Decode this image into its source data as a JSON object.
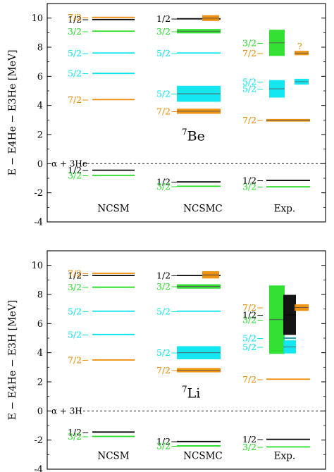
{
  "colors": {
    "j12": "#000000",
    "j32": "#22dd22",
    "j52": "#00e5ee",
    "j72": "#ee8a00"
  },
  "chart_data": [
    {
      "type": "level-scheme",
      "nucleus": "Be",
      "nucleus_mass": "7",
      "ylabel": "E − E4He − E3He [MeV]",
      "ylim": [
        -4,
        11
      ],
      "yticks": [
        "-4",
        "-2",
        "0",
        "2",
        "4",
        "6",
        "8",
        "10"
      ],
      "threshold_label": "α + 3He",
      "columns": [
        "NCSM",
        "NCSMC",
        "Exp."
      ],
      "levels": {
        "NCSM": [
          {
            "j": "1/2−",
            "e": -0.45,
            "color": "j12",
            "label": "1/2−"
          },
          {
            "j": "3/2−",
            "e": -0.8,
            "color": "j32",
            "label": "3/2−"
          },
          {
            "j": "7/2−",
            "e": 4.4,
            "color": "j72",
            "label": "7/2−"
          },
          {
            "j": "5/2−",
            "e": 6.2,
            "color": "j52",
            "label": "5/2−"
          },
          {
            "j": "5/2−",
            "e": 7.6,
            "color": "j52",
            "label": "5/2−"
          },
          {
            "j": "3/2−",
            "e": 9.1,
            "color": "j32",
            "label": "3/2−"
          },
          {
            "j": "1/2−",
            "e": 9.9,
            "color": "j12",
            "label": "1/2−"
          },
          {
            "j": "7/2−",
            "e": 10.05,
            "color": "j72",
            "label": "7/2−"
          }
        ],
        "NCSMC": [
          {
            "j": "1/2−",
            "e": -1.25,
            "color": "j12",
            "label": "1/2−"
          },
          {
            "j": "3/2−",
            "e": -1.55,
            "color": "j32",
            "label": "3/2−"
          },
          {
            "j": "7/2−",
            "e": 3.6,
            "width": 0.35,
            "color": "j72",
            "label": "7/2−"
          },
          {
            "j": "5/2−",
            "e": 4.8,
            "width": 1.1,
            "color": "j52",
            "label": "5/2−"
          },
          {
            "j": "5/2−",
            "e": 7.6,
            "color": "j52",
            "label": "5/2−"
          },
          {
            "j": "3/2−",
            "e": 9.1,
            "width": 0.3,
            "color": "j32",
            "label": "3/2−"
          },
          {
            "j": "1/2−",
            "e": 9.95,
            "color": "j12",
            "label": "1/2−"
          },
          {
            "j": "7/2−",
            "e": 10.0,
            "width": 0.4,
            "color": "j72",
            "label": "",
            "sub": "right"
          }
        ],
        "Exp.": [
          {
            "j": "1/2−",
            "e": -1.15,
            "color": "j12",
            "label": "1/2−"
          },
          {
            "j": "3/2−",
            "e": -1.59,
            "color": "j32",
            "label": "3/2−"
          },
          {
            "j": "7/2−",
            "e": 2.98,
            "width": 0.18,
            "color": "j72",
            "label": "7/2−"
          },
          {
            "j": "5/2−",
            "e": 5.14,
            "width": 1.2,
            "color": "j52",
            "label": "5/2−",
            "sub": "left"
          },
          {
            "j": "5/2−",
            "e": 5.63,
            "width": 0.4,
            "color": "j52",
            "label": "5/2−",
            "sub": "right"
          },
          {
            "j": "7/2−",
            "e": 7.6,
            "width": 0.3,
            "color": "j72",
            "label": "7/2−",
            "sub": "right"
          },
          {
            "j": "3/2−",
            "e": 8.3,
            "width": 1.8,
            "color": "j32",
            "label": "3/2−",
            "sub": "left"
          }
        ]
      },
      "annotations": [
        {
          "text": "?",
          "near": "Exp. 7/2− at 7.6 MeV"
        }
      ]
    },
    {
      "type": "level-scheme",
      "nucleus": "Li",
      "nucleus_mass": "7",
      "ylabel": "E − E4He − E3H [MeV]",
      "ylim": [
        -4,
        11
      ],
      "yticks": [
        "-4",
        "-2",
        "0",
        "2",
        "4",
        "6",
        "8",
        "10"
      ],
      "threshold_label": "α + 3H",
      "columns": [
        "NCSM",
        "NCSMC",
        "Exp."
      ],
      "levels": {
        "NCSM": [
          {
            "j": "1/2−",
            "e": -1.45,
            "color": "j12",
            "label": "1/2−"
          },
          {
            "j": "3/2−",
            "e": -1.75,
            "color": "j32",
            "label": "3/2−"
          },
          {
            "j": "7/2−",
            "e": 3.5,
            "color": "j72",
            "label": "7/2−"
          },
          {
            "j": "5/2−",
            "e": 5.25,
            "color": "j52",
            "label": "5/2−"
          },
          {
            "j": "5/2−",
            "e": 6.85,
            "color": "j52",
            "label": "5/2−"
          },
          {
            "j": "3/2−",
            "e": 8.5,
            "color": "j32",
            "label": "3/2−"
          },
          {
            "j": "1/2−",
            "e": 9.3,
            "color": "j12",
            "label": "1/2−"
          },
          {
            "j": "7/2−",
            "e": 9.45,
            "color": "j72",
            "label": "7/2−"
          }
        ],
        "NCSMC": [
          {
            "j": "1/2−",
            "e": -2.1,
            "color": "j12",
            "label": "1/2−"
          },
          {
            "j": "3/2−",
            "e": -2.4,
            "color": "j32",
            "label": "3/2−"
          },
          {
            "j": "7/2−",
            "e": 2.8,
            "width": 0.3,
            "color": "j72",
            "label": "7/2−"
          },
          {
            "j": "5/2−",
            "e": 4.0,
            "width": 0.9,
            "color": "j52",
            "label": "5/2−"
          },
          {
            "j": "5/2−",
            "e": 6.85,
            "color": "j52",
            "label": "5/2−"
          },
          {
            "j": "3/2−",
            "e": 8.55,
            "width": 0.3,
            "color": "j32",
            "label": "3/2−"
          },
          {
            "j": "1/2−",
            "e": 9.3,
            "color": "j12",
            "label": "1/2−"
          },
          {
            "j": "7/2−",
            "e": 9.35,
            "width": 0.5,
            "color": "j72",
            "label": "",
            "sub": "right"
          }
        ],
        "Exp.": [
          {
            "j": "1/2−",
            "e": -1.95,
            "color": "j12",
            "label": "1/2−"
          },
          {
            "j": "3/2−",
            "e": -2.47,
            "color": "j32",
            "label": "3/2−"
          },
          {
            "j": "7/2−",
            "e": 2.18,
            "color": "j72",
            "label": "7/2−"
          },
          {
            "j": "3/2−",
            "e": 6.27,
            "width": 4.7,
            "color": "j32",
            "label": "3/2−",
            "sub": "left"
          },
          {
            "j": "1/2−",
            "e": 6.6,
            "width": 2.75,
            "color": "j12",
            "label": "1/2−",
            "sub": "mid"
          },
          {
            "j": "5/2−",
            "e": 4.4,
            "width": 0.9,
            "color": "j52",
            "label": "5/2−",
            "sub": "mid"
          },
          {
            "j": "5/2−",
            "e": 5.0,
            "width": 0.12,
            "color": "j52",
            "label": "5/2−",
            "sub": "mid"
          },
          {
            "j": "7/2−",
            "e": 7.1,
            "width": 0.45,
            "color": "j72",
            "label": "7/2−",
            "sub": "right"
          }
        ]
      }
    }
  ]
}
